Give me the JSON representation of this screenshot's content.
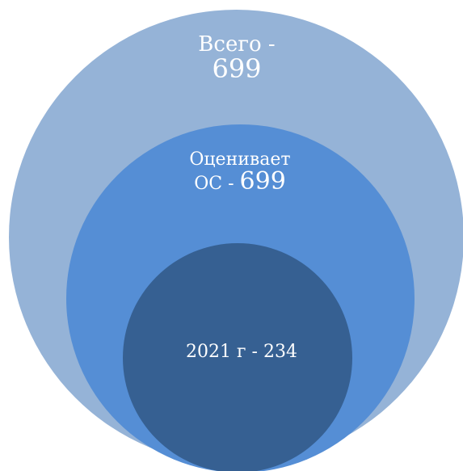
{
  "diagram": {
    "type": "nested-circles",
    "colors": {
      "outer": "#95b3d7",
      "middle": "#558ed5",
      "inner": "#366092",
      "text": "#ffffff"
    },
    "circles": [
      {
        "name": "outer",
        "label_line1": "Всего -",
        "label_line2": "699"
      },
      {
        "name": "middle",
        "label_line1": "Оценивает",
        "label_line2_prefix": "ОС - ",
        "label_line2_value": "699"
      },
      {
        "name": "inner",
        "label": "2021 г  - 234"
      }
    ]
  }
}
